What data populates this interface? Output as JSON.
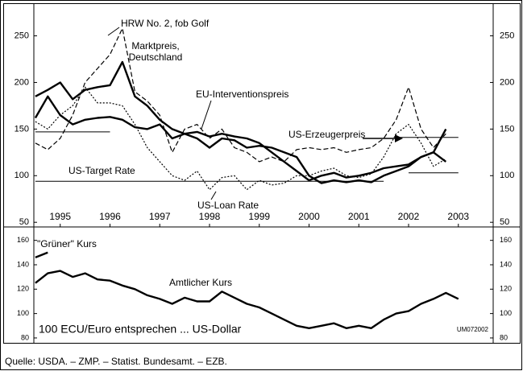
{
  "chart_data": [
    {
      "type": "line",
      "x": [
        1995.0,
        1995.25,
        1995.5,
        1995.75,
        1996.0,
        1996.25,
        1996.5,
        1996.75,
        1997.0,
        1997.25,
        1997.5,
        1997.75,
        1998.0,
        1998.25,
        1998.5,
        1998.75,
        1999.0,
        1999.25,
        1999.5,
        1999.75,
        2000.0,
        2000.25,
        2000.5,
        2000.75,
        2001.0,
        2001.25,
        2001.5,
        2001.75,
        2002.0,
        2002.25,
        2002.5,
        2002.75,
        2003.0,
        2003.25,
        2003.5
      ],
      "xlim": [
        1994.97,
        2004.2
      ],
      "xticks": [
        {
          "value": 1995.5,
          "label": "1995"
        },
        {
          "value": 1996.5,
          "label": "1996"
        },
        {
          "value": 1997.5,
          "label": "1997"
        },
        {
          "value": 1998.5,
          "label": "1998"
        },
        {
          "value": 1999.5,
          "label": "1999"
        },
        {
          "value": 2000.5,
          "label": "2000"
        },
        {
          "value": 2001.5,
          "label": "2001"
        },
        {
          "value": 2002.5,
          "label": "2002"
        },
        {
          "value": 2003.5,
          "label": "2003"
        }
      ],
      "ylim": [
        45,
        285
      ],
      "yticks": [
        50,
        100,
        150,
        200,
        250
      ],
      "series": [
        {
          "name": "HRW No. 2, fob Golf",
          "color": "#000",
          "style": "dashed",
          "values": [
            135,
            128,
            140,
            165,
            200,
            215,
            230,
            258,
            190,
            180,
            165,
            125,
            150,
            155,
            140,
            150,
            130,
            125,
            115,
            120,
            115,
            128,
            130,
            128,
            130,
            125,
            128,
            130,
            140,
            160,
            195,
            150,
            130,
            145,
            null
          ]
        },
        {
          "name": "Marktpreis, Deutschland",
          "color": "#000",
          "style": "thick",
          "values": [
            185,
            192,
            200,
            182,
            192,
            195,
            197,
            222,
            185,
            175,
            160,
            150,
            145,
            140,
            130,
            140,
            138,
            130,
            132,
            130,
            125,
            120,
            100,
            92,
            95,
            93,
            95,
            93,
            100,
            105,
            110,
            120,
            125,
            150,
            null
          ]
        },
        {
          "name": "EU-Interventionspreis",
          "color": "#000",
          "style": "thick",
          "values": [
            162,
            185,
            165,
            155,
            160,
            162,
            163,
            160,
            152,
            150,
            155,
            140,
            145,
            147,
            142,
            145,
            142,
            140,
            135,
            125,
            115,
            105,
            95,
            100,
            103,
            98,
            100,
            103,
            108,
            110,
            112,
            120,
            125,
            115,
            null
          ]
        },
        {
          "name": "US-Erzeugerpreis",
          "color": "#000",
          "style": "dotted",
          "values": [
            158,
            150,
            165,
            175,
            195,
            178,
            178,
            175,
            155,
            130,
            115,
            100,
            95,
            105,
            85,
            98,
            100,
            85,
            95,
            90,
            92,
            100,
            100,
            105,
            108,
            100,
            98,
            102,
            120,
            145,
            155,
            135,
            110,
            118,
            null
          ]
        },
        {
          "name": "US-Target Rate",
          "color": "#000",
          "style": "solid",
          "values": [
            147,
            147,
            147,
            147,
            147,
            147,
            147,
            null,
            null,
            null,
            null,
            null,
            null,
            null,
            null,
            null,
            null,
            null,
            null,
            null,
            null,
            null,
            null,
            null,
            null,
            null,
            null,
            null,
            null,
            141,
            141,
            141,
            141,
            141,
            141
          ]
        },
        {
          "name": "US-Loan Rate",
          "color": "#000",
          "style": "solid",
          "values": [
            94,
            94,
            94,
            94,
            94,
            94,
            94,
            94,
            94,
            94,
            94,
            94,
            94,
            94,
            94,
            94,
            94,
            94,
            94,
            94,
            94,
            94,
            94,
            94,
            94,
            94,
            94,
            94,
            94,
            null,
            103,
            103,
            103,
            103,
            103
          ]
        }
      ]
    },
    {
      "type": "line",
      "x": [
        1995.0,
        1995.25,
        1995.5,
        1995.75,
        1996.0,
        1996.25,
        1996.5,
        1996.75,
        1997.0,
        1997.25,
        1997.5,
        1997.75,
        1998.0,
        1998.25,
        1998.5,
        1998.75,
        1999.0,
        1999.25,
        1999.5,
        1999.75,
        2000.0,
        2000.25,
        2000.5,
        2000.75,
        2001.0,
        2001.25,
        2001.5,
        2001.75,
        2002.0,
        2002.25,
        2002.5,
        2002.75,
        2003.0,
        2003.25,
        2003.5
      ],
      "xlim": [
        1994.97,
        2004.2
      ],
      "ylim": [
        76,
        171
      ],
      "yticks": [
        80,
        100,
        120,
        140,
        160
      ],
      "note": "100 ECU/Euro entsprechen ... US-Dollar",
      "code": "UM072002",
      "series": [
        {
          "name": "\"Grüner\" Kurs",
          "color": "#000",
          "style": "thick",
          "values": [
            146,
            150,
            null,
            null,
            null,
            null,
            null,
            null,
            null,
            null,
            null,
            null,
            null,
            null,
            null,
            null,
            null,
            null,
            null,
            null,
            null,
            null,
            null,
            null,
            null,
            null,
            null,
            null,
            null,
            null,
            null,
            null,
            null,
            null,
            null
          ]
        },
        {
          "name": "Amtlicher Kurs",
          "color": "#000",
          "style": "thick",
          "values": [
            125,
            133,
            135,
            130,
            133,
            128,
            127,
            123,
            120,
            115,
            112,
            108,
            113,
            110,
            110,
            118,
            113,
            108,
            105,
            100,
            95,
            90,
            88,
            90,
            92,
            88,
            90,
            88,
            95,
            100,
            102,
            108,
            112,
            117,
            112
          ]
        }
      ]
    }
  ],
  "source": "Quelle: USDA. – ZMP. – Statist. Bundesamt. – EZB."
}
